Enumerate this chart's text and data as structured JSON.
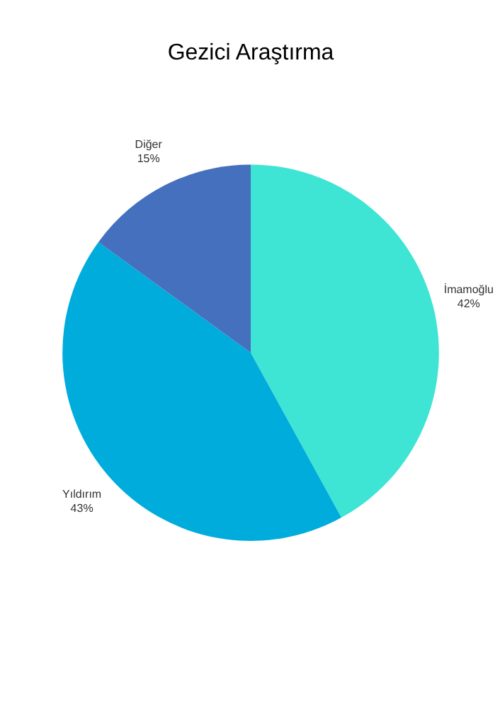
{
  "chart_data": {
    "type": "pie",
    "title": "Gezici Araştırma",
    "categories": [
      "İmamoğlu",
      "Yıldırım",
      "Diğer"
    ],
    "values": [
      42,
      43,
      15
    ],
    "value_labels": [
      "42%",
      "43%",
      "15%"
    ],
    "colors": [
      "#3ee4d4",
      "#00acdc",
      "#4570be"
    ],
    "legend": false
  }
}
